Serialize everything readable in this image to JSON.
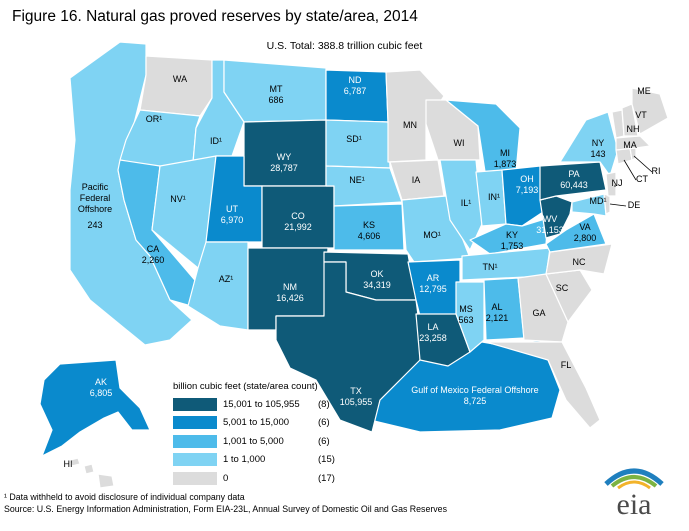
{
  "title": "Figure 16. Natural gas proved reserves by state/area, 2014",
  "subtitle": "U.S. Total: 388.8 trillion cubic feet",
  "colors": {
    "c5": "#0f5a78",
    "c4": "#0a8acd",
    "c3": "#4dbbea",
    "c2": "#7fd3f3",
    "c1": "#dcdcdc",
    "border": "#ffffff",
    "logo_text": "#4b4b4b",
    "logo_arc_blue": "#1f7fbe",
    "logo_arc_green": "#7cb342",
    "logo_arc_yellow": "#f2b32b"
  },
  "legend": {
    "title": "billion cubic feet (state/area count)",
    "items": [
      {
        "label": "15,001 to 105,955",
        "count": "(8)",
        "color_key": "c5"
      },
      {
        "label": "5,001 to 15,000",
        "count": "(6)",
        "color_key": "c4"
      },
      {
        "label": "1,001 to 5,000",
        "count": "(6)",
        "color_key": "c3"
      },
      {
        "label": "1 to 1,000",
        "count": "(15)",
        "color_key": "c2"
      },
      {
        "label": "0",
        "count": "(17)",
        "color_key": "c1"
      }
    ]
  },
  "regions": {
    "WA": {
      "abbr": "WA",
      "value": "",
      "cls": "c1"
    },
    "OR": {
      "abbr": "OR¹",
      "value": "",
      "cls": "c2"
    },
    "CA": {
      "abbr": "CA",
      "value": "2,260",
      "cls": "c3"
    },
    "ID": {
      "abbr": "ID¹",
      "value": "",
      "cls": "c2"
    },
    "NV": {
      "abbr": "NV¹",
      "value": "",
      "cls": "c2"
    },
    "MT": {
      "abbr": "MT",
      "value": "686",
      "cls": "c2"
    },
    "WY": {
      "abbr": "WY",
      "value": "28,787",
      "cls": "c5"
    },
    "UT": {
      "abbr": "UT",
      "value": "6,970",
      "cls": "c4"
    },
    "AZ": {
      "abbr": "AZ¹",
      "value": "",
      "cls": "c2"
    },
    "CO": {
      "abbr": "CO",
      "value": "21,992",
      "cls": "c5"
    },
    "NM": {
      "abbr": "NM",
      "value": "16,426",
      "cls": "c5"
    },
    "ND": {
      "abbr": "ND",
      "value": "6,787",
      "cls": "c4"
    },
    "SD": {
      "abbr": "SD¹",
      "value": "",
      "cls": "c2"
    },
    "NE": {
      "abbr": "NE¹",
      "value": "",
      "cls": "c2"
    },
    "KS": {
      "abbr": "KS",
      "value": "4,606",
      "cls": "c3"
    },
    "OK": {
      "abbr": "OK",
      "value": "34,319",
      "cls": "c5"
    },
    "TX": {
      "abbr": "TX",
      "value": "105,955",
      "cls": "c5"
    },
    "MN": {
      "abbr": "MN",
      "value": "",
      "cls": "c1"
    },
    "IA": {
      "abbr": "IA",
      "value": "",
      "cls": "c1"
    },
    "MO": {
      "abbr": "MO¹",
      "value": "",
      "cls": "c2"
    },
    "AR": {
      "abbr": "AR",
      "value": "12,795",
      "cls": "c4"
    },
    "LA": {
      "abbr": "LA",
      "value": "23,258",
      "cls": "c5"
    },
    "WI": {
      "abbr": "WI",
      "value": "",
      "cls": "c1"
    },
    "IL": {
      "abbr": "IL¹",
      "value": "",
      "cls": "c2"
    },
    "MI": {
      "abbr": "MI",
      "value": "1,873",
      "cls": "c3"
    },
    "IN": {
      "abbr": "IN¹",
      "value": "",
      "cls": "c2"
    },
    "OH": {
      "abbr": "OH",
      "value": "7,193",
      "cls": "c4"
    },
    "KY": {
      "abbr": "KY",
      "value": "1,753",
      "cls": "c3"
    },
    "TN": {
      "abbr": "TN¹",
      "value": "",
      "cls": "c2"
    },
    "MS": {
      "abbr": "MS",
      "value": "563",
      "cls": "c2"
    },
    "AL": {
      "abbr": "AL",
      "value": "2,121",
      "cls": "c3"
    },
    "GA": {
      "abbr": "GA",
      "value": "",
      "cls": "c1"
    },
    "FL": {
      "abbr": "FL",
      "value": "",
      "cls": "c1"
    },
    "SC": {
      "abbr": "SC",
      "value": "",
      "cls": "c1"
    },
    "NC": {
      "abbr": "NC",
      "value": "",
      "cls": "c1"
    },
    "VA": {
      "abbr": "VA",
      "value": "2,800",
      "cls": "c3"
    },
    "WV": {
      "abbr": "WV",
      "value": "31,153",
      "cls": "c5"
    },
    "PA": {
      "abbr": "PA",
      "value": "60,443",
      "cls": "c5"
    },
    "NY": {
      "abbr": "NY",
      "value": "143",
      "cls": "c2"
    },
    "MD": {
      "abbr": "MD¹",
      "value": "",
      "cls": "c2"
    },
    "DE": {
      "abbr": "DE",
      "value": "",
      "cls": "c1"
    },
    "NJ": {
      "abbr": "NJ",
      "value": "",
      "cls": "c1"
    },
    "CT": {
      "abbr": "CT",
      "value": "",
      "cls": "c1"
    },
    "RI": {
      "abbr": "RI",
      "value": "",
      "cls": "c1"
    },
    "MA": {
      "abbr": "MA",
      "value": "",
      "cls": "c1"
    },
    "VT": {
      "abbr": "VT",
      "value": "",
      "cls": "c1"
    },
    "NH": {
      "abbr": "NH",
      "value": "",
      "cls": "c1"
    },
    "ME": {
      "abbr": "ME",
      "value": "",
      "cls": "c1"
    },
    "AK": {
      "abbr": "AK",
      "value": "6,805",
      "cls": "c4"
    },
    "HI": {
      "abbr": "HI",
      "value": "",
      "cls": "c1"
    },
    "PACIFIC": {
      "abbr": "Pacific Federal Offshore",
      "line1": "Pacific",
      "line2": "Federal",
      "line3": "Offshore",
      "value": "243",
      "cls": "c2"
    },
    "GULF": {
      "abbr": "Gulf of Mexico Federal Offshore",
      "value": "8,725",
      "cls": "c4"
    }
  },
  "footnote": "¹ Data withheld to avoid disclosure of individual company data",
  "source": "Source:  U.S. Energy Information Administration, Form EIA-23L, Annual Survey of Domestic Oil and Gas Reserves",
  "logo": {
    "text": "eia",
    "icon": "eia-logo-icon"
  }
}
